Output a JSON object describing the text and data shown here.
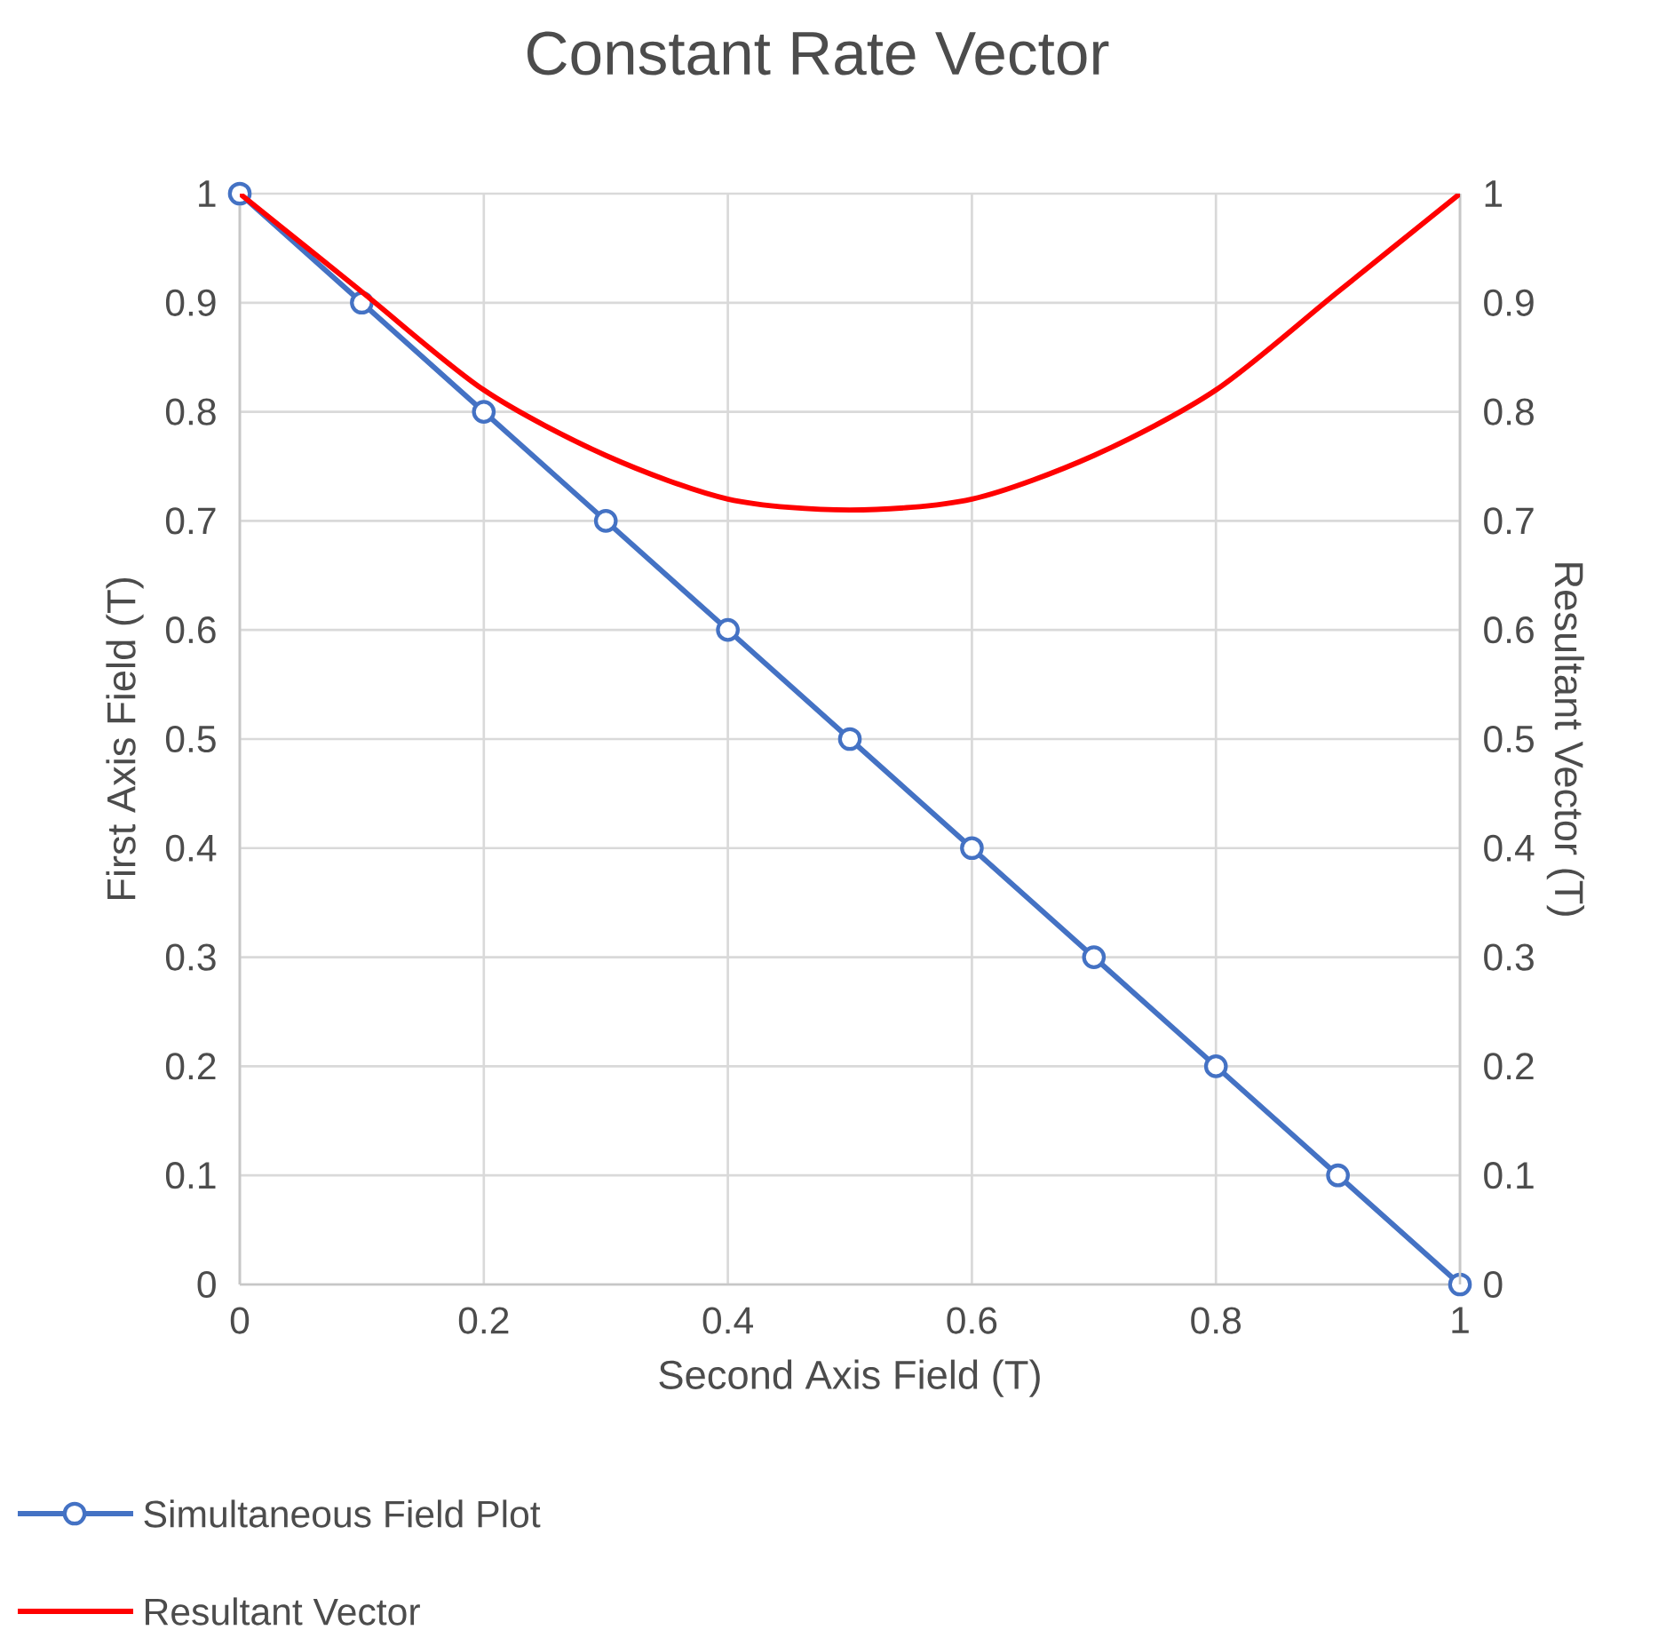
{
  "chart_data": {
    "type": "line",
    "title": "Constant Rate Vector",
    "xlabel": "Second Axis Field (T)",
    "ylabel": "First Axis Field (T)",
    "y2label": "Resultant Vector (T)",
    "x": [
      0,
      0.1,
      0.2,
      0.3,
      0.4,
      0.5,
      0.6,
      0.7,
      0.8,
      0.9,
      1
    ],
    "series": [
      {
        "name": "Simultaneous Field Plot",
        "color": "#4472c4",
        "marker": "circle",
        "values": [
          1,
          0.9,
          0.8,
          0.7,
          0.6,
          0.5,
          0.4,
          0.3,
          0.2,
          0.1,
          0
        ]
      },
      {
        "name": "Resultant Vector",
        "color": "#ff0000",
        "axis": "y2",
        "values": [
          1,
          0.91,
          0.82,
          0.76,
          0.72,
          0.71,
          0.72,
          0.76,
          0.82,
          0.91,
          1
        ]
      }
    ],
    "xlim": [
      0,
      1
    ],
    "xticks": [
      0,
      0.2,
      0.4,
      0.6,
      0.8,
      1
    ],
    "ylim": [
      0,
      1
    ],
    "yticks": [
      0,
      0.1,
      0.2,
      0.3,
      0.4,
      0.5,
      0.6,
      0.7,
      0.8,
      0.9,
      1
    ],
    "y2lim": [
      0,
      1
    ],
    "y2ticks": [
      0,
      0.1,
      0.2,
      0.3,
      0.4,
      0.5,
      0.6,
      0.7,
      0.8,
      0.9,
      1
    ],
    "grid": true,
    "legend": "bottom left",
    "line_style": "solid"
  }
}
